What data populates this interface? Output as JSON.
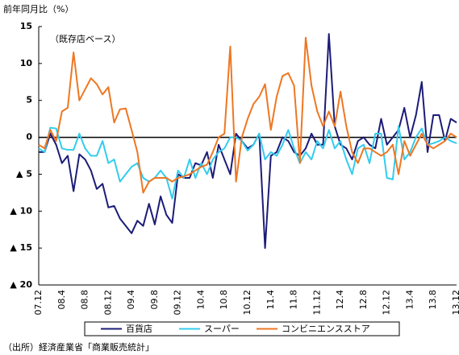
{
  "chart_data": {
    "type": "line",
    "ylabel": "前年同月比（%）",
    "annotation": "（既存店ベース）",
    "source": "（出所）経済産業省「商業販売統計」",
    "categories": [
      "07.12",
      null,
      null,
      null,
      "08.4",
      null,
      null,
      null,
      "08.8",
      null,
      null,
      null,
      "08.12",
      null,
      null,
      null,
      "09.4",
      null,
      null,
      null,
      "09.8",
      null,
      null,
      null,
      "09.12",
      null,
      null,
      null,
      "10.4",
      null,
      null,
      null,
      "10.8",
      null,
      null,
      null,
      "10.12",
      null,
      null,
      null,
      "11.4",
      null,
      null,
      null,
      "11.8",
      null,
      null,
      null,
      "11.12",
      null,
      null,
      null,
      "12.4",
      null,
      null,
      null,
      "12.8",
      null,
      null,
      null,
      "12.12",
      null,
      null,
      null,
      "13.4",
      null,
      null,
      null,
      "13.8",
      null,
      null,
      null,
      "13.12"
    ],
    "series": [
      {
        "name": "百貨店",
        "color": "#1c1c78",
        "values": [
          -2,
          -2,
          0.5,
          -1,
          -3.5,
          -2.5,
          -7.3,
          -2.3,
          -3,
          -4.5,
          -7,
          -6.3,
          -9.5,
          -9.3,
          -11,
          -12,
          -13,
          -11.3,
          -12,
          -9,
          -11.8,
          -8,
          -10.5,
          -11.6,
          -5,
          -5.5,
          -5.5,
          -3.5,
          -3.8,
          -2,
          -5.5,
          -1,
          -3,
          -5,
          0.5,
          -0.5,
          -1.5,
          -1,
          0.5,
          -15,
          -2.5,
          -2,
          0,
          -0.5,
          -2,
          -2.5,
          -1.5,
          0.5,
          -1,
          -1,
          14,
          1.5,
          -1,
          -1.5,
          -3,
          -0.5,
          0,
          -1,
          -1.5,
          2.5,
          -1,
          0,
          1,
          4,
          0,
          3,
          7.5,
          -2,
          3,
          3,
          -0.5,
          2.5,
          2
        ]
      },
      {
        "name": "スーパー",
        "color": "#33ccee",
        "values": [
          -1.5,
          -2,
          1.3,
          1.2,
          -1.5,
          -1.7,
          -1.7,
          0.5,
          -1.5,
          -2.5,
          -2.5,
          -0.5,
          -3.5,
          -3,
          -6,
          -5,
          -4,
          -3.5,
          -5.5,
          -6,
          -5.5,
          -4.5,
          -5.5,
          -8.3,
          -4.5,
          -5.5,
          -3,
          -5.5,
          -3.5,
          -5,
          -3,
          -2,
          -1.5,
          0,
          0,
          -0.5,
          -1.8,
          -1,
          0.5,
          -3,
          -2,
          -2.5,
          -1,
          1,
          -1.5,
          -3.5,
          -2,
          -3,
          -0.5,
          -1.5,
          1,
          -1.5,
          -0.5,
          -3,
          -5,
          -1.5,
          -1,
          -3.5,
          0.5,
          0.5,
          -5.5,
          -5.7,
          1.5,
          -3,
          -2,
          0,
          1.2,
          -1,
          -0.8,
          -0.5,
          0,
          -0.5,
          -0.8
        ]
      },
      {
        "name": "コンビニエンスストア",
        "color": "#ee7722",
        "values": [
          -1,
          -1.5,
          1,
          -0.5,
          3.5,
          4,
          11.5,
          5,
          6.5,
          8,
          7.2,
          5.8,
          6.8,
          2,
          3.8,
          3.9,
          1,
          -2,
          -7.5,
          -6,
          -5.5,
          -5.5,
          -5.5,
          -6,
          -5.5,
          -5.3,
          -5,
          -4.5,
          -4,
          -3.7,
          -2,
          0,
          0.5,
          12.3,
          -6,
          0,
          2.5,
          4.5,
          5.5,
          7.2,
          1,
          5.5,
          8.3,
          8.7,
          7,
          -3.5,
          13.5,
          7,
          3.5,
          1.5,
          3.5,
          1.5,
          6.2,
          1.5,
          -2,
          -3.5,
          -1.5,
          -1.5,
          -2,
          -2.5,
          -2,
          -1,
          -5,
          -0.5,
          -2.5,
          -1,
          0.5,
          -1,
          -1.5,
          -1,
          -0.5,
          0.5,
          0
        ]
      }
    ],
    "ylim": [
      -20,
      15
    ],
    "yticks": [
      15,
      10,
      5,
      0,
      {
        "value": -5,
        "label": "▲ 5"
      },
      {
        "value": -10,
        "label": "▲ 10"
      },
      {
        "value": -15,
        "label": "▲ 15"
      },
      {
        "value": -20,
        "label": "▲ 20"
      }
    ],
    "zero_line": true,
    "legend": "bottom"
  }
}
